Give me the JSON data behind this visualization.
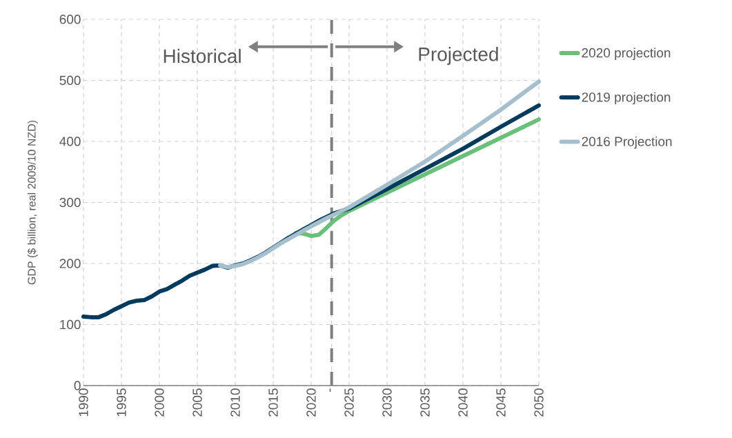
{
  "chart_data": {
    "type": "line",
    "ylabel": "GDP ($ billion, real 2009/10 NZD)",
    "xlim": [
      1990,
      2050
    ],
    "ylim": [
      0,
      600
    ],
    "xticks": [
      1990,
      1995,
      2000,
      2005,
      2010,
      2015,
      2020,
      {
        "value": 2022.7,
        "label": "-"
      },
      2025,
      2030,
      2035,
      2040,
      2045,
      2050
    ],
    "yticks": [
      0,
      100,
      200,
      300,
      400,
      500,
      600
    ],
    "grid": true,
    "legend": "right",
    "line_style": "solid",
    "marker": "none",
    "ref_lines": [
      {
        "axis": "x",
        "value": 2022.7,
        "color": "#7f7f7f",
        "line_style": "dashed"
      }
    ],
    "annotations": [
      "Historical",
      "Projected"
    ],
    "series": [
      {
        "name": "2020 projection",
        "color": "#6abf7b",
        "x": [
          2018,
          2019,
          2020,
          2021,
          2022,
          2023,
          2024,
          2025,
          2030,
          2035,
          2040,
          2045,
          2050
        ],
        "values": [
          250,
          249,
          245,
          247,
          258,
          270,
          279,
          286,
          316,
          346,
          376,
          406,
          436
        ]
      },
      {
        "name": "2019 projection",
        "color": "#003a5c",
        "x": [
          1990,
          1991,
          1992,
          1993,
          1994,
          1995,
          1996,
          1997,
          1998,
          1999,
          2000,
          2001,
          2002,
          2003,
          2004,
          2005,
          2006,
          2007,
          2008,
          2009,
          2010,
          2011,
          2012,
          2013,
          2014,
          2015,
          2016,
          2017,
          2018,
          2019,
          2020,
          2021,
          2022,
          2023,
          2025,
          2030,
          2035,
          2040,
          2045,
          2050
        ],
        "values": [
          113,
          112,
          112,
          117,
          124,
          130,
          136,
          139,
          140,
          146,
          154,
          158,
          165,
          172,
          180,
          185,
          190,
          196,
          197,
          193,
          197,
          200,
          205,
          211,
          218,
          226,
          234,
          242,
          249,
          256,
          263,
          270,
          276,
          282,
          290,
          322,
          355,
          388,
          424,
          459
        ]
      },
      {
        "name": "2016 Projection",
        "color": "#a6bfcc",
        "x": [
          2008,
          2009,
          2010,
          2011,
          2012,
          2013,
          2014,
          2015,
          2016,
          2017,
          2018,
          2019,
          2020,
          2022,
          2025,
          2030,
          2035,
          2040,
          2045,
          2050
        ],
        "values": [
          197,
          194,
          196,
          199,
          204,
          210,
          217,
          225,
          233,
          240,
          247,
          254,
          261,
          274,
          292,
          329,
          367,
          409,
          452,
          498
        ]
      }
    ]
  }
}
